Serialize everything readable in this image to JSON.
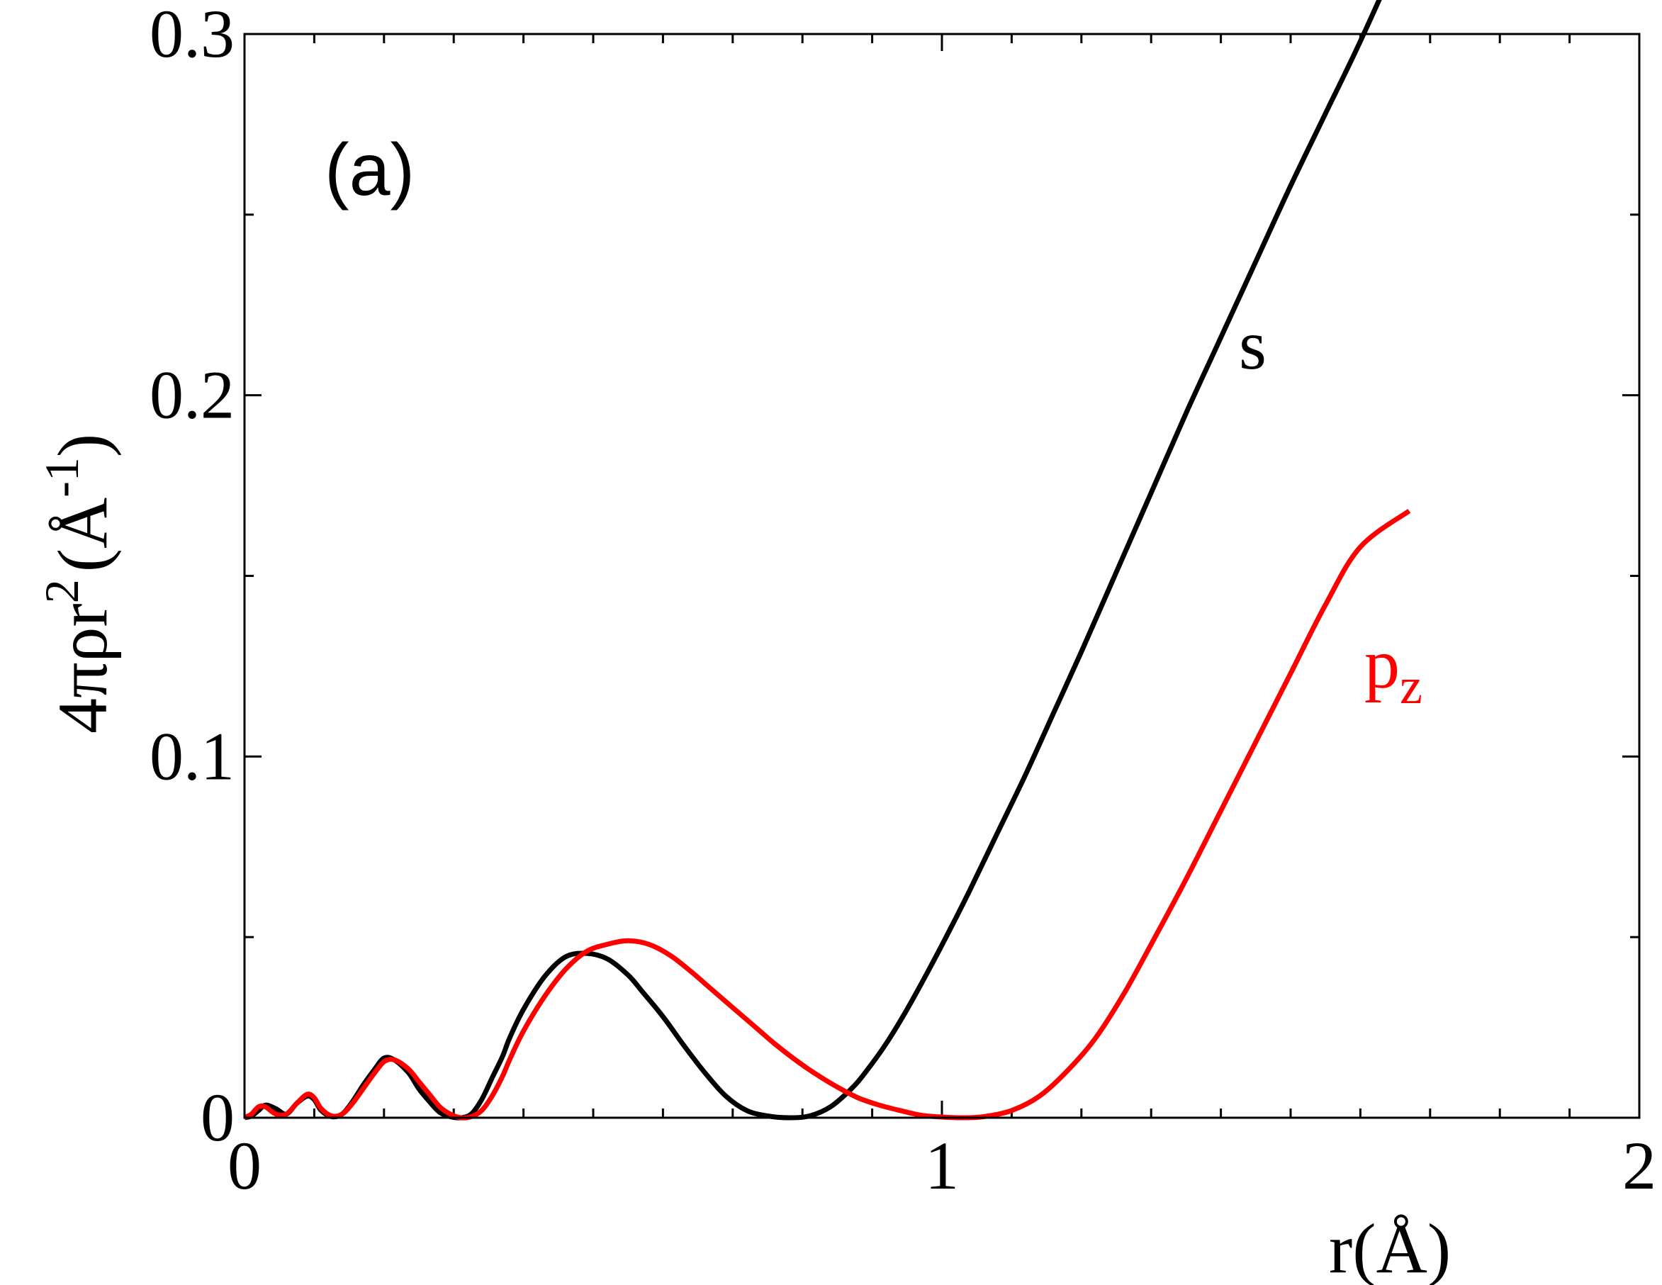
{
  "chart_data": {
    "type": "line",
    "panel_label": "(a)",
    "xlabel": "r(Å)",
    "ylabel": {
      "prefix": "4πρr",
      "exp": "2",
      "unit_open": "(Å",
      "unit_exp": "-1",
      "unit_close": ")"
    },
    "xlim": [
      0,
      2
    ],
    "ylim": [
      0,
      0.3
    ],
    "x_ticks": [
      {
        "value": 0,
        "label": "0"
      },
      {
        "value": 1,
        "label": "1"
      },
      {
        "value": 2,
        "label": "2"
      }
    ],
    "y_ticks": [
      {
        "value": 0,
        "label": "0"
      },
      {
        "value": 0.1,
        "label": "0.1"
      },
      {
        "value": 0.2,
        "label": "0.2"
      },
      {
        "value": 0.3,
        "label": "0.3"
      }
    ],
    "x_minor_step": 0.1,
    "y_minor_step": 0.05,
    "grid": false,
    "series": [
      {
        "name": "s",
        "color": "#000000",
        "x": [
          0.0,
          0.01,
          0.02,
          0.03,
          0.045,
          0.06,
          0.075,
          0.09,
          0.1,
          0.11,
          0.125,
          0.14,
          0.155,
          0.17,
          0.185,
          0.2,
          0.215,
          0.235,
          0.25,
          0.265,
          0.28,
          0.295,
          0.31,
          0.325,
          0.34,
          0.355,
          0.37,
          0.38,
          0.4,
          0.43,
          0.46,
          0.49,
          0.52,
          0.55,
          0.57,
          0.6,
          0.63,
          0.66,
          0.69,
          0.72,
          0.75,
          0.78,
          0.81,
          0.84,
          0.87,
          0.89,
          0.92,
          0.95,
          0.98,
          1.01,
          1.04,
          1.08,
          1.12,
          1.16,
          1.2,
          1.25,
          1.3,
          1.35,
          1.4,
          1.45,
          1.5,
          1.55,
          1.6,
          1.67
        ],
        "y": [
          0.0,
          0.0005,
          0.002,
          0.0035,
          0.0025,
          0.001,
          0.004,
          0.006,
          0.005,
          0.002,
          0.0003,
          0.001,
          0.0045,
          0.009,
          0.013,
          0.0165,
          0.016,
          0.0125,
          0.008,
          0.0045,
          0.0015,
          0.0003,
          0.0,
          0.001,
          0.005,
          0.011,
          0.017,
          0.022,
          0.03,
          0.039,
          0.0445,
          0.0455,
          0.044,
          0.0395,
          0.035,
          0.028,
          0.02,
          0.0125,
          0.006,
          0.002,
          0.0005,
          0.0,
          0.0005,
          0.003,
          0.008,
          0.0125,
          0.0205,
          0.03,
          0.0405,
          0.0515,
          0.063,
          0.079,
          0.095,
          0.112,
          0.129,
          0.151,
          0.173,
          0.195,
          0.216,
          0.237,
          0.258,
          0.278,
          0.298,
          0.328
        ]
      },
      {
        "name": "p",
        "subscript": "z",
        "color": "#ff0000",
        "x": [
          0.0,
          0.01,
          0.02,
          0.03,
          0.045,
          0.06,
          0.075,
          0.09,
          0.1,
          0.11,
          0.125,
          0.14,
          0.155,
          0.17,
          0.185,
          0.2,
          0.215,
          0.235,
          0.25,
          0.265,
          0.28,
          0.295,
          0.31,
          0.325,
          0.34,
          0.355,
          0.37,
          0.38,
          0.4,
          0.43,
          0.46,
          0.49,
          0.52,
          0.55,
          0.58,
          0.61,
          0.64,
          0.67,
          0.7,
          0.73,
          0.76,
          0.79,
          0.82,
          0.85,
          0.88,
          0.91,
          0.94,
          0.97,
          1.0,
          1.03,
          1.06,
          1.1,
          1.14,
          1.18,
          1.22,
          1.26,
          1.3,
          1.35,
          1.4,
          1.45,
          1.5,
          1.55,
          1.6,
          1.67
        ],
        "y": [
          0.0,
          0.001,
          0.003,
          0.003,
          0.001,
          0.001,
          0.004,
          0.0065,
          0.0055,
          0.0025,
          0.0005,
          0.001,
          0.004,
          0.008,
          0.012,
          0.0155,
          0.016,
          0.0135,
          0.01,
          0.0065,
          0.003,
          0.001,
          0.0,
          0.0003,
          0.002,
          0.006,
          0.0115,
          0.016,
          0.024,
          0.0335,
          0.041,
          0.046,
          0.048,
          0.049,
          0.048,
          0.045,
          0.0405,
          0.0355,
          0.0305,
          0.0255,
          0.0205,
          0.016,
          0.012,
          0.0085,
          0.0055,
          0.0035,
          0.002,
          0.0007,
          0.0002,
          0.0,
          0.0003,
          0.002,
          0.006,
          0.013,
          0.022,
          0.034,
          0.048,
          0.066,
          0.085,
          0.104,
          0.123,
          0.142,
          0.158,
          0.168
        ]
      }
    ]
  }
}
